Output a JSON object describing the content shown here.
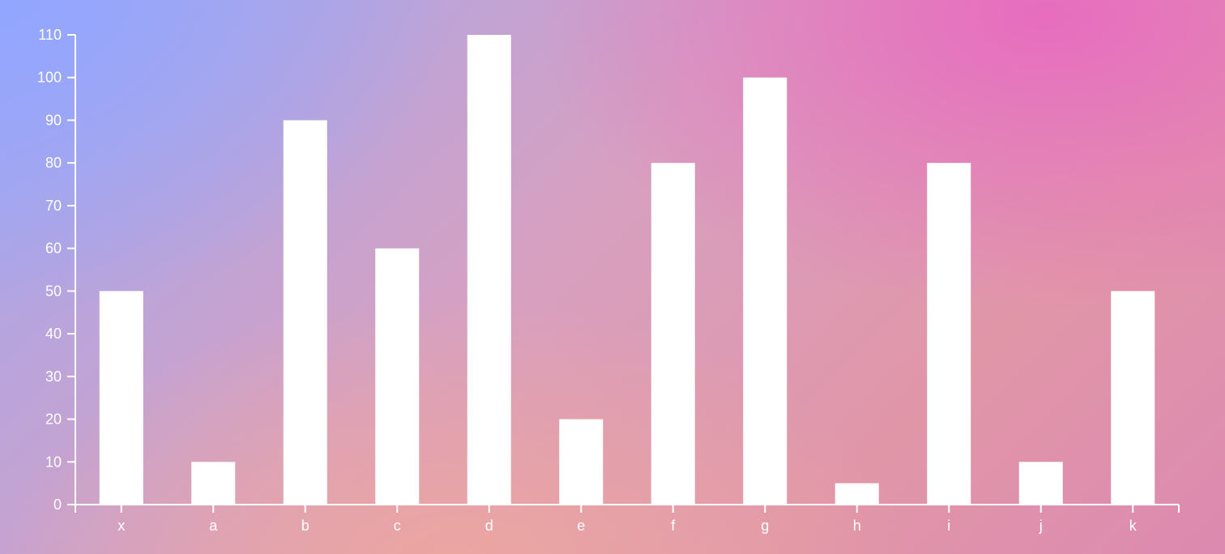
{
  "chart_data": {
    "type": "bar",
    "categories": [
      "x",
      "a",
      "b",
      "c",
      "d",
      "e",
      "f",
      "g",
      "h",
      "i",
      "j",
      "k"
    ],
    "values": [
      50,
      10,
      90,
      60,
      110,
      20,
      80,
      100,
      5,
      80,
      10,
      50
    ],
    "title": "",
    "xlabel": "",
    "ylabel": "",
    "ylim": [
      0,
      110
    ],
    "yticks": [
      0,
      10,
      20,
      30,
      40,
      50,
      60,
      70,
      80,
      90,
      100,
      110
    ],
    "grid": false,
    "colors": {
      "bar": "#ffffff",
      "axis": "#ffffff",
      "text": "#ffffff"
    }
  }
}
